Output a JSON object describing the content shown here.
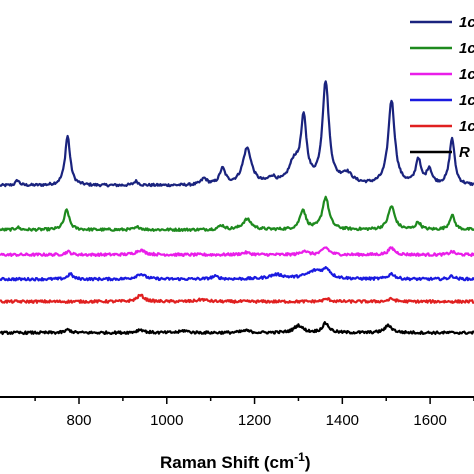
{
  "chart_data": {
    "type": "line",
    "xlabel": "Raman Shift (cm",
    "xlabel_sup": "-1",
    "xlabel_close": ")",
    "xlim": [
      620,
      1700
    ],
    "xticks": [
      800,
      1000,
      1200,
      1400,
      1600
    ],
    "xtick_labels": [
      "800",
      "1000",
      "1200",
      "1400",
      "1600"
    ],
    "y_axis_visible": false,
    "legend_position": "top-right",
    "legend_truncated_labels": [
      "1c",
      "1c",
      "1c",
      "1c",
      "1c",
      "R"
    ],
    "series": [
      {
        "color": "#1a237e",
        "baseline": 3.95,
        "peaks": [
          [
            660,
            0.1,
            5
          ],
          [
            774,
            0.95,
            7
          ],
          [
            930,
            0.08,
            6
          ],
          [
            1085,
            0.12,
            8
          ],
          [
            1127,
            0.3,
            8
          ],
          [
            1183,
            0.7,
            12
          ],
          [
            1240,
            0.12,
            10
          ],
          [
            1290,
            0.4,
            14
          ],
          [
            1312,
            1.2,
            8
          ],
          [
            1362,
            1.95,
            9
          ],
          [
            1410,
            0.2,
            15
          ],
          [
            1512,
            1.62,
            9
          ],
          [
            1573,
            0.48,
            7
          ],
          [
            1598,
            0.3,
            7
          ],
          [
            1650,
            0.9,
            7
          ]
        ]
      },
      {
        "color": "#1e8a1e",
        "baseline": 3.1,
        "peaks": [
          [
            660,
            0.05,
            5
          ],
          [
            772,
            0.38,
            7
          ],
          [
            935,
            0.05,
            8
          ],
          [
            1125,
            0.08,
            8
          ],
          [
            1183,
            0.2,
            12
          ],
          [
            1310,
            0.38,
            8
          ],
          [
            1362,
            0.62,
            9
          ],
          [
            1512,
            0.45,
            9
          ],
          [
            1573,
            0.14,
            7
          ],
          [
            1650,
            0.28,
            7
          ]
        ]
      },
      {
        "color": "#e91ee9",
        "baseline": 2.62,
        "peaks": [
          [
            775,
            0.06,
            7
          ],
          [
            940,
            0.09,
            12
          ],
          [
            1180,
            0.04,
            12
          ],
          [
            1313,
            0.08,
            8
          ],
          [
            1362,
            0.14,
            9
          ],
          [
            1512,
            0.13,
            9
          ],
          [
            1650,
            0.06,
            7
          ]
        ]
      },
      {
        "color": "#1a1ae0",
        "baseline": 2.15,
        "peaks": [
          [
            780,
            0.1,
            7
          ],
          [
            940,
            0.1,
            12
          ],
          [
            1110,
            0.05,
            10
          ],
          [
            1250,
            0.08,
            20
          ],
          [
            1340,
            0.16,
            25
          ],
          [
            1365,
            0.14,
            9
          ],
          [
            1512,
            0.1,
            9
          ],
          [
            1650,
            0.06,
            7
          ]
        ]
      },
      {
        "color": "#e02020",
        "baseline": 1.72,
        "peaks": [
          [
            940,
            0.12,
            10
          ],
          [
            1080,
            0.04,
            12
          ],
          [
            1365,
            0.05,
            9
          ],
          [
            1512,
            0.05,
            9
          ]
        ]
      },
      {
        "color": "#000000",
        "baseline": 1.12,
        "peaks": [
          [
            775,
            0.06,
            7
          ],
          [
            940,
            0.06,
            10
          ],
          [
            1040,
            0.04,
            10
          ],
          [
            1180,
            0.04,
            12
          ],
          [
            1300,
            0.14,
            12
          ],
          [
            1362,
            0.18,
            9
          ],
          [
            1505,
            0.14,
            10
          ]
        ]
      }
    ]
  }
}
